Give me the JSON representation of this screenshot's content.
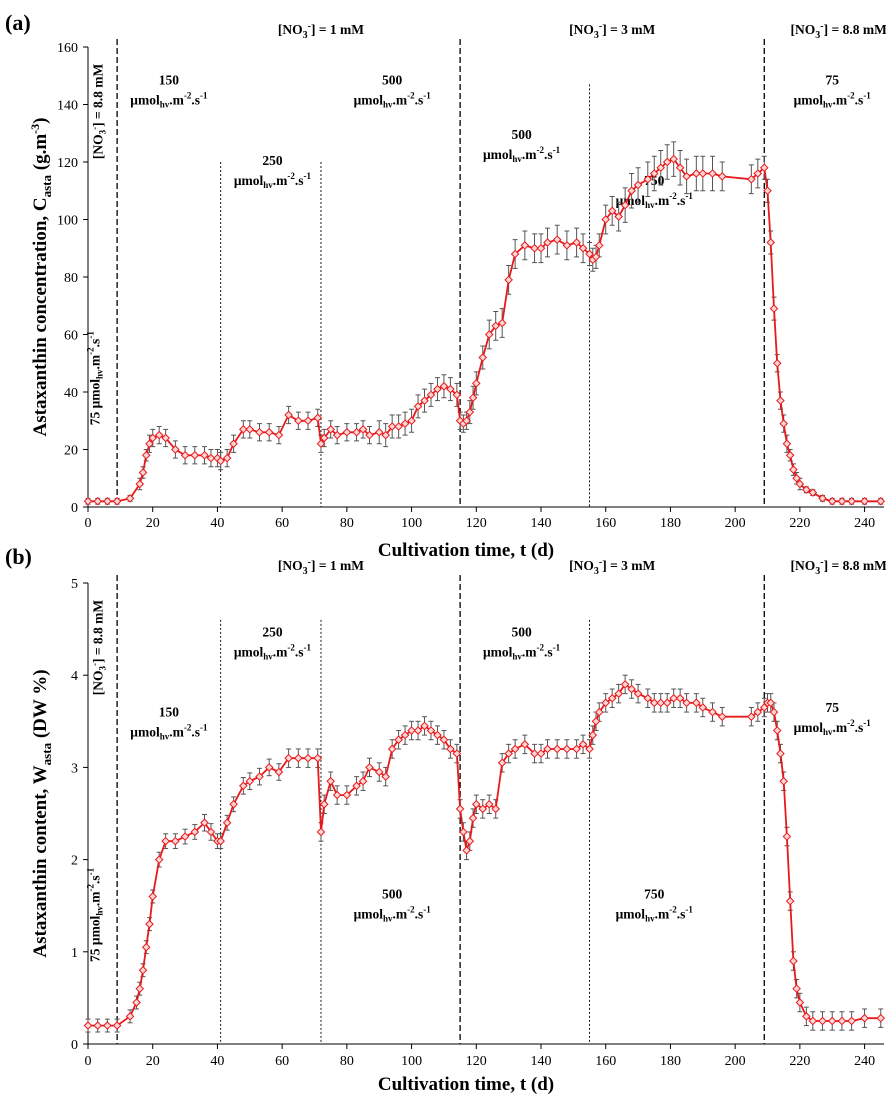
{
  "chart_data": [
    {
      "type": "line",
      "panel_label": "(a)",
      "xlabel": "Cultivation time, t (d)",
      "ylabel_main": "Astaxanthin concentration, C",
      "ylabel_sub": "asta",
      "ylabel_unit": " (g.m",
      "ylabel_unit_sup": "-3",
      "ylabel_close": ")",
      "xlim": [
        0,
        246
      ],
      "ylim": [
        0,
        160
      ],
      "xticks": [
        0,
        20,
        40,
        60,
        80,
        100,
        120,
        140,
        160,
        180,
        200,
        220,
        240
      ],
      "yticks": [
        0,
        20,
        40,
        60,
        80,
        100,
        120,
        140,
        160
      ],
      "grid": false,
      "color": "#e8191b",
      "marker": "diamond",
      "boundaries_dashed": [
        9,
        115,
        209
      ],
      "boundaries_dotted": [
        [
          41,
          120
        ],
        [
          72,
          120
        ],
        [
          155,
          147
        ]
      ],
      "nitrate_labels": [
        {
          "text": "[NO3-] = 1 mM",
          "x": 72
        },
        {
          "text": "[NO3-] = 3 mM",
          "x": 162
        },
        {
          "text": "[NO3-] = 8.8 mM",
          "x": 232
        }
      ],
      "rotated_labels": [
        "75 μmolhv.m-2.s-1",
        "[NO3-] = 8.8 mM"
      ],
      "light_labels": [
        {
          "value": "150",
          "x": 25,
          "y": 147
        },
        {
          "value": "250",
          "x": 57,
          "y": 119
        },
        {
          "value": "500",
          "x": 94,
          "y": 147
        },
        {
          "value": "500",
          "x": 134,
          "y": 128
        },
        {
          "value": "750",
          "x": 175,
          "y": 112
        },
        {
          "value": "75",
          "x": 230,
          "y": 147
        }
      ],
      "unit_text": {
        "pre": "μmol",
        "sub": "hv",
        "mid": ".m",
        "sup1": "-2",
        "dot": ".s",
        "sup2": "-1"
      },
      "series": [
        {
          "x": [
            0,
            3,
            6,
            9,
            13,
            16,
            17,
            18,
            19,
            20,
            22,
            24,
            27,
            30,
            33,
            36,
            38,
            40,
            41,
            43,
            45,
            48,
            50,
            53,
            56,
            59,
            62,
            65,
            68,
            71,
            72,
            73,
            75,
            77,
            80,
            83,
            85,
            87,
            90,
            92,
            94,
            96,
            98,
            100,
            102,
            104,
            106,
            108,
            110,
            112,
            114,
            115,
            116,
            117,
            118,
            119,
            120,
            122,
            124,
            126,
            128,
            130,
            132,
            135,
            138,
            140,
            142,
            145,
            148,
            151,
            153,
            155,
            156,
            157,
            158,
            160,
            162,
            164,
            166,
            168,
            170,
            173,
            175,
            177,
            179,
            181,
            183,
            185,
            188,
            190,
            193,
            196,
            205,
            207,
            209,
            210,
            211,
            212,
            213,
            214,
            215,
            216,
            217,
            218,
            219,
            220,
            222,
            224,
            227,
            230,
            233,
            236,
            240,
            245
          ],
          "y": [
            2,
            2,
            2,
            2,
            3,
            8,
            12,
            18,
            22,
            24,
            25,
            24,
            20,
            18,
            18,
            18,
            17,
            17,
            16,
            17,
            22,
            27,
            27,
            26,
            26,
            25,
            32,
            30,
            30,
            31,
            22,
            24,
            27,
            25,
            26,
            26,
            27,
            25,
            26,
            25,
            28,
            28,
            29,
            30,
            35,
            37,
            39,
            41,
            42,
            41,
            39,
            30,
            29,
            30,
            33,
            38,
            43,
            52,
            60,
            63,
            64,
            79,
            88,
            91,
            90,
            90,
            92,
            93,
            91,
            92,
            90,
            88,
            86,
            87,
            91,
            100,
            103,
            101,
            105,
            110,
            112,
            114,
            116,
            118,
            120,
            121,
            118,
            115,
            116,
            116,
            116,
            115,
            114,
            116,
            118,
            110,
            92,
            69,
            50,
            37,
            29,
            22,
            18,
            13,
            10,
            8,
            6,
            5,
            3,
            2,
            2,
            2,
            2,
            2
          ],
          "err": [
            1,
            1,
            1,
            1,
            1,
            2,
            2,
            2,
            3,
            3,
            3,
            3,
            3,
            3,
            3,
            3,
            3,
            3,
            3,
            3,
            3,
            3,
            3,
            3,
            3,
            3,
            3,
            3,
            3,
            3,
            3,
            3,
            3,
            3,
            3,
            3,
            3,
            3,
            4,
            4,
            4,
            4,
            4,
            4,
            4,
            4,
            4,
            4,
            4,
            4,
            4,
            3,
            3,
            3,
            4,
            4,
            4,
            4,
            5,
            5,
            5,
            5,
            5,
            5,
            5,
            5,
            5,
            5,
            5,
            5,
            5,
            4,
            4,
            4,
            4,
            5,
            5,
            5,
            6,
            6,
            6,
            6,
            6,
            6,
            6,
            6,
            6,
            6,
            6,
            6,
            6,
            5,
            5,
            5,
            4,
            4,
            4,
            4,
            3,
            3,
            3,
            3,
            2,
            2,
            2,
            2,
            1,
            1,
            1,
            1,
            1,
            1,
            1,
            1
          ]
        }
      ]
    },
    {
      "type": "line",
      "panel_label": "(b)",
      "xlabel": "Cultivation time, t (d)",
      "ylabel_main": "Astaxanthin content, W",
      "ylabel_sub": "asta",
      "ylabel_unit": " (DW %)",
      "ylabel_unit_sup": "",
      "ylabel_close": "",
      "xlim": [
        0,
        246
      ],
      "ylim": [
        0,
        5
      ],
      "xticks": [
        0,
        20,
        40,
        60,
        80,
        100,
        120,
        140,
        160,
        180,
        200,
        220,
        240
      ],
      "yticks": [
        0,
        1,
        2,
        3,
        4,
        5
      ],
      "grid": false,
      "color": "#e8191b",
      "marker": "diamond",
      "boundaries_dashed": [
        9,
        115,
        209
      ],
      "boundaries_dotted": [
        [
          41,
          4.6
        ],
        [
          72,
          4.6
        ],
        [
          155,
          4.6
        ]
      ],
      "nitrate_labels": [
        {
          "text": "[NO3-] = 1 mM",
          "x": 72
        },
        {
          "text": "[NO3-] = 3 mM",
          "x": 162
        },
        {
          "text": "[NO3-] = 8.8 mM",
          "x": 232
        }
      ],
      "rotated_labels": [
        "75 μmolhv.m-2.s-1",
        "[NO3-] = 8.8 mM"
      ],
      "light_labels": [
        {
          "value": "150",
          "x": 25,
          "y": 3.55
        },
        {
          "value": "250",
          "x": 57,
          "y": 4.42
        },
        {
          "value": "500",
          "x": 94,
          "y": 1.58
        },
        {
          "value": "500",
          "x": 134,
          "y": 4.42
        },
        {
          "value": "750",
          "x": 175,
          "y": 1.58
        },
        {
          "value": "75",
          "x": 230,
          "y": 3.6
        }
      ],
      "unit_text": {
        "pre": "μmol",
        "sub": "hv",
        "mid": ".m",
        "sup1": "-2",
        "dot": ".s",
        "sup2": "-1"
      },
      "series": [
        {
          "x": [
            0,
            3,
            6,
            9,
            13,
            15,
            16,
            17,
            18,
            19,
            20,
            22,
            24,
            27,
            30,
            33,
            36,
            38,
            40,
            41,
            43,
            45,
            48,
            50,
            53,
            56,
            59,
            62,
            65,
            68,
            71,
            72,
            73,
            75,
            77,
            80,
            83,
            85,
            87,
            90,
            92,
            94,
            96,
            98,
            100,
            102,
            104,
            106,
            108,
            110,
            112,
            114,
            115,
            116,
            117,
            118,
            119,
            120,
            122,
            124,
            126,
            128,
            130,
            132,
            135,
            138,
            140,
            142,
            145,
            148,
            151,
            153,
            155,
            156,
            157,
            158,
            160,
            162,
            164,
            166,
            168,
            170,
            173,
            175,
            177,
            179,
            181,
            183,
            185,
            188,
            190,
            193,
            196,
            205,
            207,
            209,
            210,
            211,
            212,
            213,
            214,
            215,
            216,
            217,
            218,
            219,
            220,
            222,
            224,
            227,
            230,
            233,
            236,
            240,
            245
          ],
          "y": [
            0.2,
            0.2,
            0.2,
            0.2,
            0.3,
            0.45,
            0.6,
            0.8,
            1.05,
            1.3,
            1.6,
            2.0,
            2.2,
            2.2,
            2.25,
            2.3,
            2.4,
            2.3,
            2.2,
            2.2,
            2.4,
            2.6,
            2.8,
            2.85,
            2.9,
            3.0,
            2.95,
            3.1,
            3.1,
            3.1,
            3.1,
            2.3,
            2.6,
            2.85,
            2.7,
            2.7,
            2.8,
            2.85,
            3.0,
            2.95,
            2.9,
            3.2,
            3.3,
            3.35,
            3.4,
            3.4,
            3.45,
            3.4,
            3.35,
            3.3,
            3.2,
            3.15,
            2.55,
            2.3,
            2.1,
            2.2,
            2.45,
            2.6,
            2.55,
            2.6,
            2.55,
            3.05,
            3.15,
            3.2,
            3.25,
            3.15,
            3.15,
            3.2,
            3.2,
            3.2,
            3.2,
            3.25,
            3.2,
            3.35,
            3.5,
            3.6,
            3.7,
            3.75,
            3.8,
            3.9,
            3.85,
            3.8,
            3.75,
            3.7,
            3.7,
            3.7,
            3.75,
            3.75,
            3.7,
            3.7,
            3.65,
            3.6,
            3.55,
            3.55,
            3.6,
            3.65,
            3.7,
            3.7,
            3.6,
            3.4,
            3.15,
            2.85,
            2.25,
            1.55,
            0.9,
            0.6,
            0.45,
            0.3,
            0.25,
            0.25,
            0.25,
            0.25,
            0.25,
            0.28,
            0.28
          ],
          "err": [
            0.07,
            0.07,
            0.07,
            0.07,
            0.07,
            0.07,
            0.07,
            0.07,
            0.07,
            0.07,
            0.07,
            0.08,
            0.08,
            0.08,
            0.08,
            0.08,
            0.09,
            0.09,
            0.08,
            0.08,
            0.08,
            0.08,
            0.09,
            0.09,
            0.09,
            0.09,
            0.09,
            0.1,
            0.1,
            0.1,
            0.1,
            0.1,
            0.1,
            0.1,
            0.1,
            0.1,
            0.1,
            0.1,
            0.1,
            0.1,
            0.1,
            0.1,
            0.1,
            0.1,
            0.1,
            0.1,
            0.1,
            0.1,
            0.1,
            0.1,
            0.1,
            0.1,
            0.1,
            0.1,
            0.1,
            0.1,
            0.1,
            0.1,
            0.1,
            0.1,
            0.1,
            0.1,
            0.1,
            0.1,
            0.1,
            0.1,
            0.1,
            0.1,
            0.1,
            0.1,
            0.1,
            0.1,
            0.1,
            0.1,
            0.1,
            0.1,
            0.1,
            0.1,
            0.1,
            0.1,
            0.1,
            0.1,
            0.1,
            0.1,
            0.1,
            0.1,
            0.1,
            0.1,
            0.1,
            0.1,
            0.1,
            0.1,
            0.1,
            0.1,
            0.1,
            0.1,
            0.1,
            0.1,
            0.1,
            0.1,
            0.1,
            0.1,
            0.1,
            0.1,
            0.1,
            0.1,
            0.1,
            0.1,
            0.1,
            0.1,
            0.1,
            0.1,
            0.1,
            0.1,
            0.1
          ]
        }
      ]
    }
  ]
}
